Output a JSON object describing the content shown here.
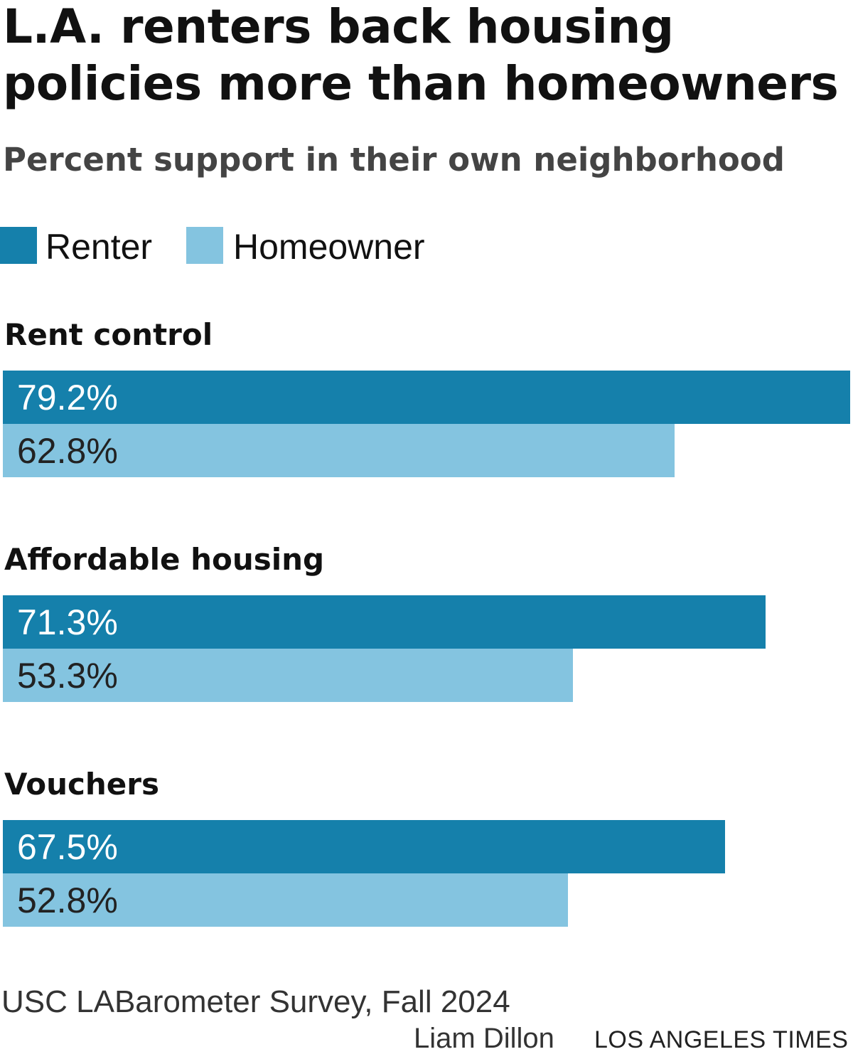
{
  "chart_data": {
    "type": "bar",
    "orientation": "horizontal",
    "title": "L.A. renters back housing policies more than homeowners",
    "subtitle": "Percent support in their own neighborhood",
    "categories": [
      "Rent control",
      "Affordable housing",
      "Vouchers"
    ],
    "series": [
      {
        "name": "Renter",
        "color": "#1580ab",
        "values": [
          79.2,
          71.3,
          67.5
        ],
        "labels": [
          "79.2%",
          "71.3%",
          "67.5%"
        ]
      },
      {
        "name": "Homeowner",
        "color": "#84c4e0",
        "values": [
          62.8,
          53.3,
          52.8
        ],
        "labels": [
          "62.8%",
          "53.3%",
          "52.8%"
        ]
      }
    ],
    "xlim": [
      0,
      79.2
    ],
    "legend": "top-left",
    "grid": false
  },
  "footer": {
    "source": "USC LABarometer Survey, Fall 2024",
    "credit": "Liam Dillon",
    "publisher": "LOS ANGELES TIMES"
  }
}
